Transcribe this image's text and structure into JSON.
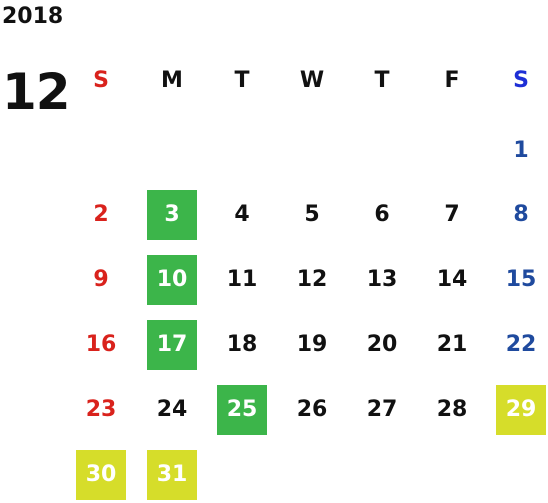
{
  "year": "2018",
  "month": "12",
  "weekdays": [
    "S",
    "M",
    "T",
    "W",
    "T",
    "F",
    "S"
  ],
  "colors": {
    "default": "#111111",
    "sunday": "#d9221c",
    "saturday": "#1f4a9e",
    "header_saturday": "#1e2fd6",
    "highlight_green": "#3cb54a",
    "highlight_yellow": "#d6dd2a",
    "highlight_text": "#ffffff"
  },
  "days": [
    {
      "day": "1",
      "week": 0,
      "dow": 6,
      "highlight": null
    },
    {
      "day": "2",
      "week": 1,
      "dow": 0,
      "highlight": null
    },
    {
      "day": "3",
      "week": 1,
      "dow": 1,
      "highlight": "green"
    },
    {
      "day": "4",
      "week": 1,
      "dow": 2,
      "highlight": null
    },
    {
      "day": "5",
      "week": 1,
      "dow": 3,
      "highlight": null
    },
    {
      "day": "6",
      "week": 1,
      "dow": 4,
      "highlight": null
    },
    {
      "day": "7",
      "week": 1,
      "dow": 5,
      "highlight": null
    },
    {
      "day": "8",
      "week": 1,
      "dow": 6,
      "highlight": null
    },
    {
      "day": "9",
      "week": 2,
      "dow": 0,
      "highlight": null
    },
    {
      "day": "10",
      "week": 2,
      "dow": 1,
      "highlight": "green"
    },
    {
      "day": "11",
      "week": 2,
      "dow": 2,
      "highlight": null
    },
    {
      "day": "12",
      "week": 2,
      "dow": 3,
      "highlight": null
    },
    {
      "day": "13",
      "week": 2,
      "dow": 4,
      "highlight": null
    },
    {
      "day": "14",
      "week": 2,
      "dow": 5,
      "highlight": null
    },
    {
      "day": "15",
      "week": 2,
      "dow": 6,
      "highlight": null
    },
    {
      "day": "16",
      "week": 3,
      "dow": 0,
      "highlight": null
    },
    {
      "day": "17",
      "week": 3,
      "dow": 1,
      "highlight": "green"
    },
    {
      "day": "18",
      "week": 3,
      "dow": 2,
      "highlight": null
    },
    {
      "day": "19",
      "week": 3,
      "dow": 3,
      "highlight": null
    },
    {
      "day": "20",
      "week": 3,
      "dow": 4,
      "highlight": null
    },
    {
      "day": "21",
      "week": 3,
      "dow": 5,
      "highlight": null
    },
    {
      "day": "22",
      "week": 3,
      "dow": 6,
      "highlight": null
    },
    {
      "day": "23",
      "week": 4,
      "dow": 0,
      "highlight": null
    },
    {
      "day": "24",
      "week": 4,
      "dow": 1,
      "highlight": null
    },
    {
      "day": "25",
      "week": 4,
      "dow": 2,
      "highlight": "green"
    },
    {
      "day": "26",
      "week": 4,
      "dow": 3,
      "highlight": null
    },
    {
      "day": "27",
      "week": 4,
      "dow": 4,
      "highlight": null
    },
    {
      "day": "28",
      "week": 4,
      "dow": 5,
      "highlight": null
    },
    {
      "day": "29",
      "week": 4,
      "dow": 6,
      "highlight": "yellow"
    },
    {
      "day": "30",
      "week": 5,
      "dow": 0,
      "highlight": "yellow"
    },
    {
      "day": "31",
      "week": 5,
      "dow": 1,
      "highlight": "yellow"
    }
  ]
}
